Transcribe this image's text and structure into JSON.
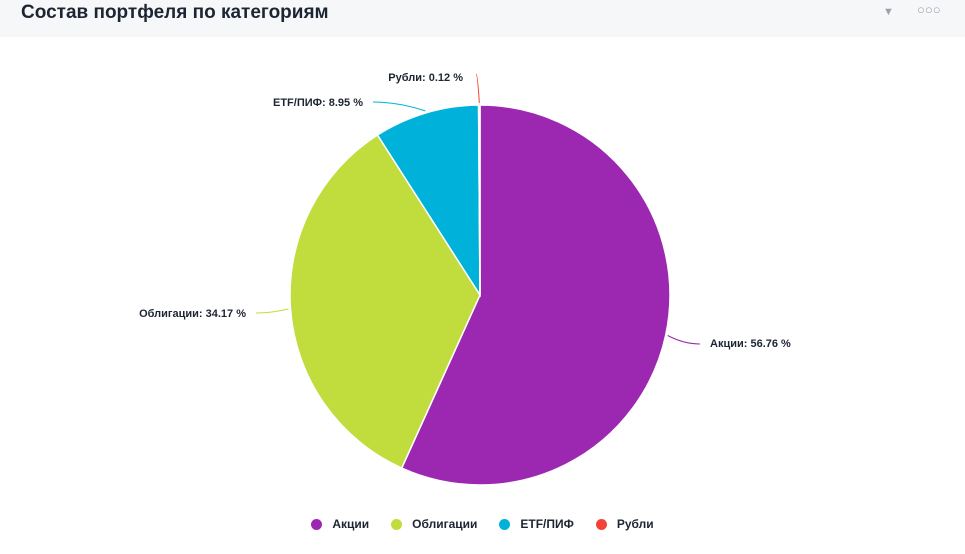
{
  "header": {
    "title": "Состав портфеля по категориям",
    "filter_icon": "filter-icon",
    "more_icon": "more-icon",
    "more_glyph": "○○○"
  },
  "chart_data": {
    "type": "pie",
    "slices": [
      {
        "name": "Акции",
        "value": 56.76,
        "label": "Акции: 56.76 %",
        "color": "#9c27b0"
      },
      {
        "name": "Облигации",
        "value": 34.17,
        "label": "Облигации: 34.17 %",
        "color": "#c0dc3d"
      },
      {
        "name": "ETF/ПИФ",
        "value": 8.95,
        "label": "ETF/ПИФ: 8.95 %",
        "color": "#00b2d9"
      },
      {
        "name": "Рубли",
        "value": 0.12,
        "label": "Рубли: 0.12 %",
        "color": "#f44336"
      }
    ],
    "legend": [
      "Акции",
      "Облигации",
      "ETF/ПИФ",
      "Рубли"
    ],
    "legend_position": "bottom"
  }
}
